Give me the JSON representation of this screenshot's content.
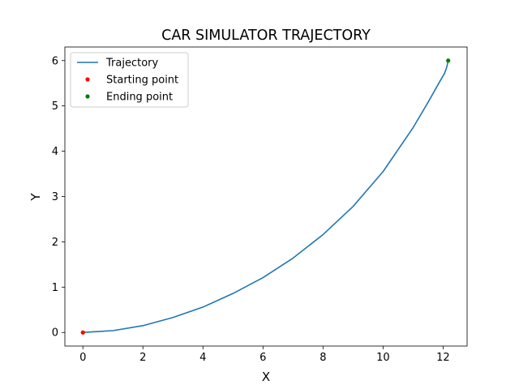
{
  "chart_data": {
    "type": "line",
    "title": "CAR SIMULATOR TRAJECTORY",
    "xlabel": "X",
    "ylabel": "Y",
    "xlim": [
      -0.6,
      12.8
    ],
    "ylim": [
      -0.3,
      6.3
    ],
    "xticks": [
      0,
      2,
      4,
      6,
      8,
      10,
      12
    ],
    "yticks": [
      0,
      1,
      2,
      3,
      4,
      5,
      6
    ],
    "grid": false,
    "legend_position": "top-left",
    "series": [
      {
        "name": "Trajectory",
        "kind": "line",
        "color": "#1f77b4",
        "x": [
          0,
          1,
          2,
          3,
          4,
          5,
          6,
          7,
          8,
          9,
          10,
          11,
          11.5,
          11.9,
          12.05,
          12.12,
          12.17
        ],
        "y": [
          0,
          0.04,
          0.15,
          0.33,
          0.56,
          0.86,
          1.21,
          1.64,
          2.16,
          2.78,
          3.55,
          4.52,
          5.08,
          5.55,
          5.72,
          5.85,
          6.0
        ]
      },
      {
        "name": "Starting point",
        "kind": "scatter",
        "color": "#ff0000",
        "x": [
          0
        ],
        "y": [
          0
        ]
      },
      {
        "name": "Ending point",
        "kind": "scatter",
        "color": "#008000",
        "x": [
          12.17
        ],
        "y": [
          6.0
        ]
      }
    ]
  }
}
